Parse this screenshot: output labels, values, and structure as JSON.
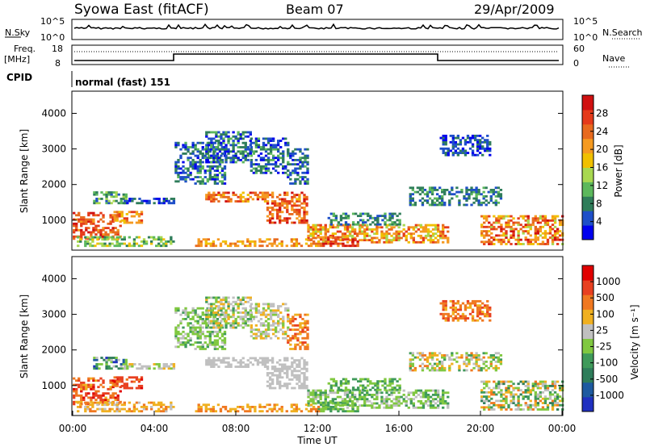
{
  "header": {
    "station": "Syowa East (fitACF)",
    "beam": "Beam 07",
    "date": "29/Apr/2009"
  },
  "panels": {
    "nsky_label": "N.Sky",
    "nsky_ticks": [
      "10^5",
      "10^0"
    ],
    "nsearch_label": "N.Search",
    "freq_label_line1": "Freq.",
    "freq_label_line2": "[MHz]",
    "freq_ticks": [
      "18",
      "8"
    ],
    "nave_ticks": [
      "60",
      "0"
    ],
    "nave_label": "Nave",
    "cpid_label": "CPID",
    "cpid_text": "normal (fast) 151"
  },
  "chart_data": [
    {
      "type": "heatmap",
      "name": "power",
      "ylabel": "Slant Range [km]",
      "ylim": [
        180,
        4600
      ],
      "yticks": [
        "4000",
        "3000",
        "2000",
        "1000"
      ],
      "xlim": [
        0,
        24
      ],
      "colorbar": {
        "label": "Power [dB]",
        "ticks": [
          "28",
          "24",
          "20",
          "16",
          "12",
          "8",
          "4"
        ],
        "colors": [
          "#0000ee",
          "#1e4fc8",
          "#2f7d5a",
          "#5cb85c",
          "#a8d850",
          "#f0c000",
          "#f59a20",
          "#e86a1e",
          "#e53a1a",
          "#d01010"
        ]
      }
    },
    {
      "type": "heatmap",
      "name": "velocity",
      "ylabel": "Slant Range [km]",
      "ylim": [
        180,
        4600
      ],
      "yticks": [
        "4000",
        "3000",
        "2000",
        "1000"
      ],
      "xlim": [
        0,
        24
      ],
      "xticks": [
        "00:00",
        "04:00",
        "08:00",
        "12:00",
        "16:00",
        "20:00",
        "00:00"
      ],
      "xlabel": "Time UT",
      "colorbar": {
        "label": "Velocity [m s⁻¹]",
        "ticks": [
          "1000",
          "500",
          "100",
          "25",
          "-25",
          "-100",
          "-500",
          "-1000"
        ],
        "colors": [
          "#2030c0",
          "#1e5aa0",
          "#2e7d5a",
          "#3f9a5a",
          "#80c840",
          "#c0c0c0",
          "#f0b020",
          "#f07820",
          "#e84020",
          "#e00000"
        ]
      }
    }
  ]
}
